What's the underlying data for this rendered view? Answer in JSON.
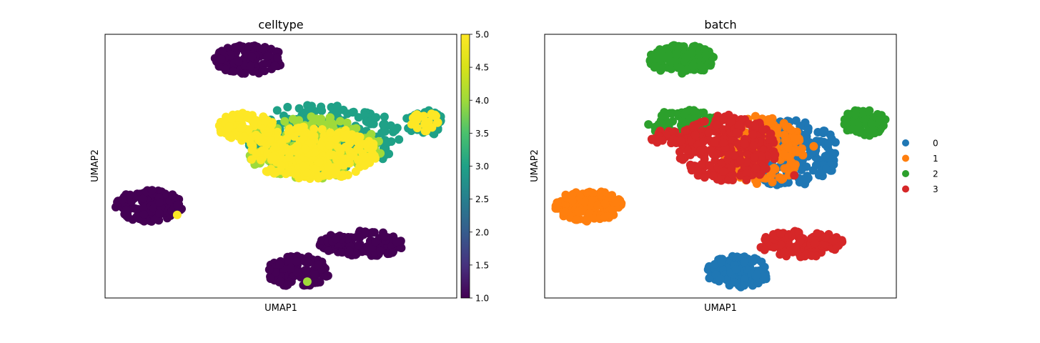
{
  "chart_data": [
    {
      "type": "scatter",
      "title": "celltype",
      "xlabel": "UMAP1",
      "ylabel": "UMAP2",
      "color_scale": "viridis",
      "colorbar": {
        "range": [
          1.0,
          5.0
        ],
        "ticks": [
          "1.0",
          "1.5",
          "2.0",
          "2.5",
          "3.0",
          "3.5",
          "4.0",
          "4.5",
          "5.0"
        ]
      },
      "xlim": [
        0,
        100
      ],
      "ylim": [
        0,
        100
      ],
      "grid": false,
      "clusters": [
        {
          "value": 1.0,
          "cx": 41,
          "cy": 90.5,
          "rx": 10,
          "ry": 5.5,
          "n": 140
        },
        {
          "value": 3.0,
          "cx": 62,
          "cy": 61,
          "rx": 22,
          "ry": 13,
          "n": 260
        },
        {
          "value": 4.0,
          "cx": 59,
          "cy": 57,
          "rx": 20,
          "ry": 12,
          "n": 180
        },
        {
          "value": 5.0,
          "cx": 59,
          "cy": 55,
          "rx": 19,
          "ry": 10,
          "n": 280
        },
        {
          "value": 5.0,
          "cx": 40,
          "cy": 65,
          "rx": 8,
          "ry": 5.5,
          "n": 90
        },
        {
          "value": 3.0,
          "cx": 91,
          "cy": 66.5,
          "rx": 5.5,
          "ry": 5,
          "n": 60
        },
        {
          "value": 5.0,
          "cx": 91,
          "cy": 67,
          "rx": 4,
          "ry": 4,
          "n": 25
        },
        {
          "value": 1.0,
          "cx": 12.5,
          "cy": 35,
          "rx": 9.5,
          "ry": 6,
          "n": 140
        },
        {
          "value": 1.0,
          "cx": 73,
          "cy": 20.5,
          "rx": 12,
          "ry": 5,
          "n": 140
        },
        {
          "value": 1.0,
          "cx": 55,
          "cy": 10,
          "rx": 9,
          "ry": 6,
          "n": 130
        }
      ],
      "highlight_points": [
        {
          "value": 5.0,
          "x": 20.5,
          "y": 31.5
        },
        {
          "value": 4.0,
          "x": 57.5,
          "y": 6.2
        }
      ]
    },
    {
      "type": "scatter",
      "title": "batch",
      "xlabel": "UMAP1",
      "ylabel": "UMAP2",
      "xlim": [
        0,
        100
      ],
      "ylim": [
        0,
        100
      ],
      "grid": false,
      "legend": {
        "position": "right",
        "entries": [
          {
            "label": "0",
            "color": "#1f77b4"
          },
          {
            "label": "1",
            "color": "#ff7f0e"
          },
          {
            "label": "2",
            "color": "#2ca02c"
          },
          {
            "label": "3",
            "color": "#d62728"
          }
        ]
      },
      "clusters": [
        {
          "batch": "2",
          "cx": 39,
          "cy": 90.5,
          "rx": 9.5,
          "ry": 5.5,
          "n": 140
        },
        {
          "batch": "0",
          "cx": 69,
          "cy": 55,
          "rx": 15,
          "ry": 12.5,
          "n": 220
        },
        {
          "batch": "1",
          "cx": 61,
          "cy": 56,
          "rx": 13,
          "ry": 13,
          "n": 200
        },
        {
          "batch": "2",
          "cx": 39.5,
          "cy": 66,
          "rx": 10,
          "ry": 5.5,
          "n": 100
        },
        {
          "batch": "3",
          "cx": 52,
          "cy": 56.5,
          "rx": 14,
          "ry": 13,
          "n": 300
        },
        {
          "batch": "3",
          "cx": 37,
          "cy": 61,
          "rx": 7,
          "ry": 3,
          "n": 30
        },
        {
          "batch": "2",
          "cx": 91,
          "cy": 66.5,
          "rx": 6,
          "ry": 5.5,
          "n": 70
        },
        {
          "batch": "1",
          "cx": 12.5,
          "cy": 35,
          "rx": 9.5,
          "ry": 6,
          "n": 140
        },
        {
          "batch": "3",
          "cx": 73,
          "cy": 20.5,
          "rx": 12,
          "ry": 5,
          "n": 140
        },
        {
          "batch": "0",
          "cx": 55,
          "cy": 10,
          "rx": 9,
          "ry": 6,
          "n": 130
        }
      ],
      "highlight_points": [
        {
          "batch": "1",
          "x": 76.5,
          "y": 57.5
        },
        {
          "batch": "3",
          "x": 71,
          "y": 46.5
        }
      ]
    }
  ]
}
